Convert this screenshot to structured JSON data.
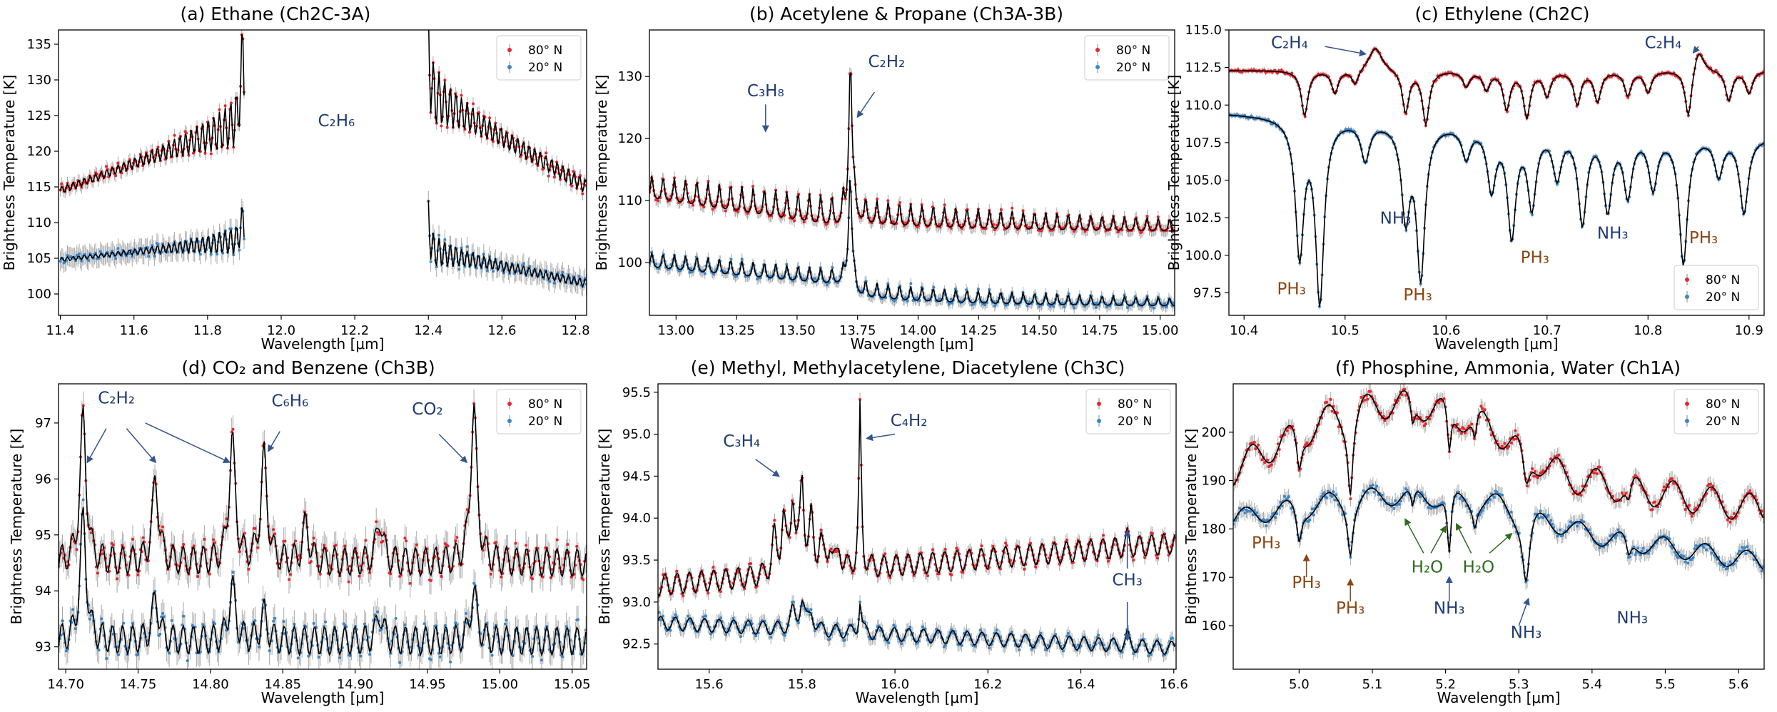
{
  "figure": {
    "colors": {
      "north": "#e8262a",
      "south": "#3a86c8",
      "model": "#000000",
      "error": "#9a9a9a",
      "blue_label": "#1f3b73",
      "brown_label": "#8b4513",
      "green_label": "#2e6b1f",
      "arrow": "#33558f"
    },
    "legend_entries": [
      "80$^\\circ$N",
      "20$^\\circ$N"
    ],
    "legend_display": [
      "80° N",
      "20° N"
    ],
    "xlabel": "Wavelength [μm]",
    "ylabel": "Brightness Temperature [K]"
  },
  "chart_data": [
    {
      "type": "scatter",
      "title": "(a) Ethane (Ch2C-3A)",
      "xlabel": "Wavelength [μm]",
      "ylabel": "Brightness Temperature [K]",
      "xlim": [
        11.395,
        12.83
      ],
      "ylim": [
        97,
        137
      ],
      "xticks": [
        "11.4",
        "11.6",
        "11.8",
        "12.0",
        "12.2",
        "12.4",
        "12.6",
        "12.8"
      ],
      "yticks": [
        "100",
        "105",
        "110",
        "115",
        "120",
        "125",
        "130",
        "135"
      ],
      "legend": "top-right",
      "annotations": [
        {
          "label": "C₂H₆",
          "x": 12.15,
          "y": 123.5,
          "color": "blue"
        }
      ],
      "series": [
        {
          "name": "80° N",
          "segments": [
            [
              11.4,
              11.9
            ],
            [
              12.4,
              12.83
            ]
          ],
          "base_start": 114.5,
          "base_end": 124,
          "base2_start": 128,
          "base2_end": 115,
          "line_spacing": 0.0153
        },
        {
          "name": "20° N",
          "segments": [
            [
              11.4,
              11.9
            ],
            [
              12.4,
              12.83
            ]
          ],
          "base_start": 104.8,
          "base_end": 107.5,
          "base2_start": 106,
          "base2_end": 101.5,
          "line_spacing": 0.0153
        }
      ]
    },
    {
      "type": "scatter",
      "title": "(b) Acetylene & Propane (Ch3A-3B)",
      "xlabel": "Wavelength [μm]",
      "ylabel": "Brightness Temperature [K]",
      "xlim": [
        12.89,
        15.06
      ],
      "ylim": [
        91.5,
        137.5
      ],
      "xticks": [
        "13.00",
        "13.25",
        "13.50",
        "13.75",
        "14.00",
        "14.25",
        "14.50",
        "14.75",
        "15.00"
      ],
      "yticks": [
        "100",
        "110",
        "120",
        "130"
      ],
      "legend": "top-right",
      "annotations": [
        {
          "label": "C₃H₈",
          "x": 13.37,
          "y": 126.8,
          "color": "blue"
        },
        {
          "label": "C₂H₂",
          "x": 13.87,
          "y": 131.5,
          "color": "blue"
        }
      ],
      "series": [
        {
          "name": "80° N",
          "peak_x": 13.72,
          "peak_y": 136,
          "base_left": 110,
          "base_right": 104.8
        },
        {
          "name": "20° N",
          "peak_x": 13.72,
          "peak_y": 117,
          "base_left": 99,
          "base_right": 92.8
        }
      ]
    },
    {
      "type": "scatter",
      "title": "(c) Ethylene (Ch2C)",
      "xlabel": "Wavelength [μm]",
      "ylabel": "Brightness Temperature [K]",
      "xlim": [
        10.385,
        10.915
      ],
      "ylim": [
        96,
        115
      ],
      "xticks": [
        "10.4",
        "10.5",
        "10.6",
        "10.7",
        "10.8",
        "10.9"
      ],
      "yticks": [
        "97.5",
        "100.0",
        "102.5",
        "105.0",
        "107.5",
        "110.0",
        "112.5",
        "115.0"
      ],
      "legend": "bottom-right",
      "annotations": [
        {
          "label": "C₂H₄",
          "x": 10.445,
          "y": 113.8,
          "color": "blue"
        },
        {
          "label": "C₂H₄",
          "x": 10.815,
          "y": 113.8,
          "color": "blue"
        },
        {
          "label": "NH₃",
          "x": 10.55,
          "y": 102.1,
          "color": "blue"
        },
        {
          "label": "NH₃",
          "x": 10.765,
          "y": 101.1,
          "color": "blue"
        },
        {
          "label": "PH₃",
          "x": 10.447,
          "y": 97.4,
          "color": "brown"
        },
        {
          "label": "PH₃",
          "x": 10.572,
          "y": 97.0,
          "color": "brown"
        },
        {
          "label": "PH₃",
          "x": 10.688,
          "y": 99.5,
          "color": "brown"
        },
        {
          "label": "PH₃",
          "x": 10.855,
          "y": 100.8,
          "color": "brown"
        }
      ],
      "series": [
        {
          "name": "80° N",
          "base": 112.3
        },
        {
          "name": "20° N",
          "base": 109.4
        }
      ]
    },
    {
      "type": "scatter",
      "title": "(d) CO₂ and Benzene (Ch3B)",
      "xlabel": "Wavelength [μm]",
      "ylabel": "Brightness Temperature [K]",
      "xlim": [
        14.695,
        15.06
      ],
      "ylim": [
        92.6,
        97.7
      ],
      "xticks": [
        "14.70",
        "14.75",
        "14.80",
        "14.85",
        "14.90",
        "14.95",
        "15.00",
        "15.05"
      ],
      "yticks": [
        "93",
        "94",
        "95",
        "96",
        "97"
      ],
      "legend": "top-right",
      "annotations": [
        {
          "label": "C₂H₂",
          "x": 14.735,
          "y": 97.35,
          "color": "blue"
        },
        {
          "label": "C₆H₆",
          "x": 14.855,
          "y": 97.3,
          "color": "blue"
        },
        {
          "label": "CO₂",
          "x": 14.95,
          "y": 97.15,
          "color": "blue"
        }
      ],
      "series": [
        {
          "name": "80° N",
          "base": 94.5,
          "peaks": [
            [
              14.712,
              97.1
            ],
            [
              14.762,
              96.0
            ],
            [
              14.815,
              96.7
            ],
            [
              14.837,
              96.4
            ],
            [
              14.866,
              95.2
            ],
            [
              14.917,
              95.3
            ],
            [
              14.982,
              97.3
            ]
          ]
        },
        {
          "name": "20° N",
          "base": 93.1,
          "peaks": [
            [
              14.712,
              95.3
            ],
            [
              14.762,
              93.9
            ],
            [
              14.815,
              94.1
            ],
            [
              14.837,
              93.6
            ],
            [
              14.917,
              93.6
            ],
            [
              14.982,
              94.0
            ]
          ]
        }
      ]
    },
    {
      "type": "scatter",
      "title": "(e) Methyl, Methylacetylene, Diacetylene (Ch3C)",
      "xlabel": "Wavelength [μm]",
      "ylabel": "Brightness Temperature [K]",
      "xlim": [
        15.49,
        16.605
      ],
      "ylim": [
        92.2,
        95.6
      ],
      "xticks": [
        "15.6",
        "15.8",
        "16.0",
        "16.2",
        "16.4",
        "16.6"
      ],
      "yticks": [
        "92.5",
        "93.0",
        "93.5",
        "94.0",
        "94.5",
        "95.0",
        "95.5"
      ],
      "legend": "top-right",
      "annotations": [
        {
          "label": "C₃H₄",
          "x": 15.67,
          "y": 94.85,
          "color": "blue"
        },
        {
          "label": "C₄H₂",
          "x": 16.03,
          "y": 95.1,
          "color": "blue"
        },
        {
          "label": "CH₃",
          "x": 16.5,
          "y": 93.2,
          "color": "blue"
        }
      ],
      "series": [
        {
          "name": "80° N",
          "base_left": 93.2,
          "base_right": 93.7
        },
        {
          "name": "20° N",
          "base_left": 92.75,
          "base_right": 92.45
        }
      ]
    },
    {
      "type": "scatter",
      "title": "(f) Phosphine, Ammonia, Water (Ch1A)",
      "xlabel": "Wavelength [μm]",
      "ylabel": "Brightness Temperature [K]",
      "xlim": [
        4.91,
        5.635
      ],
      "ylim": [
        151,
        210
      ],
      "xticks": [
        "5.0",
        "5.1",
        "5.2",
        "5.3",
        "5.4",
        "5.5",
        "5.6"
      ],
      "yticks": [
        "160",
        "170",
        "180",
        "190",
        "200"
      ],
      "legend": "top-right",
      "annotations": [
        {
          "label": "PH₃",
          "x": 4.955,
          "y": 176,
          "color": "brown"
        },
        {
          "label": "PH₃",
          "x": 5.01,
          "y": 167.8,
          "color": "brown"
        },
        {
          "label": "PH₃",
          "x": 5.07,
          "y": 162.5,
          "color": "brown"
        },
        {
          "label": "H₂O",
          "x": 5.175,
          "y": 171,
          "color": "green"
        },
        {
          "label": "H₂O",
          "x": 5.245,
          "y": 171,
          "color": "green"
        },
        {
          "label": "NH₃",
          "x": 5.205,
          "y": 162.5,
          "color": "blue"
        },
        {
          "label": "NH₃",
          "x": 5.31,
          "y": 157.5,
          "color": "blue"
        },
        {
          "label": "NH₃",
          "x": 5.455,
          "y": 160.5,
          "color": "blue"
        }
      ],
      "series": [
        {
          "name": "80° N",
          "base": 195
        },
        {
          "name": "20° N",
          "base": 184
        }
      ]
    }
  ]
}
